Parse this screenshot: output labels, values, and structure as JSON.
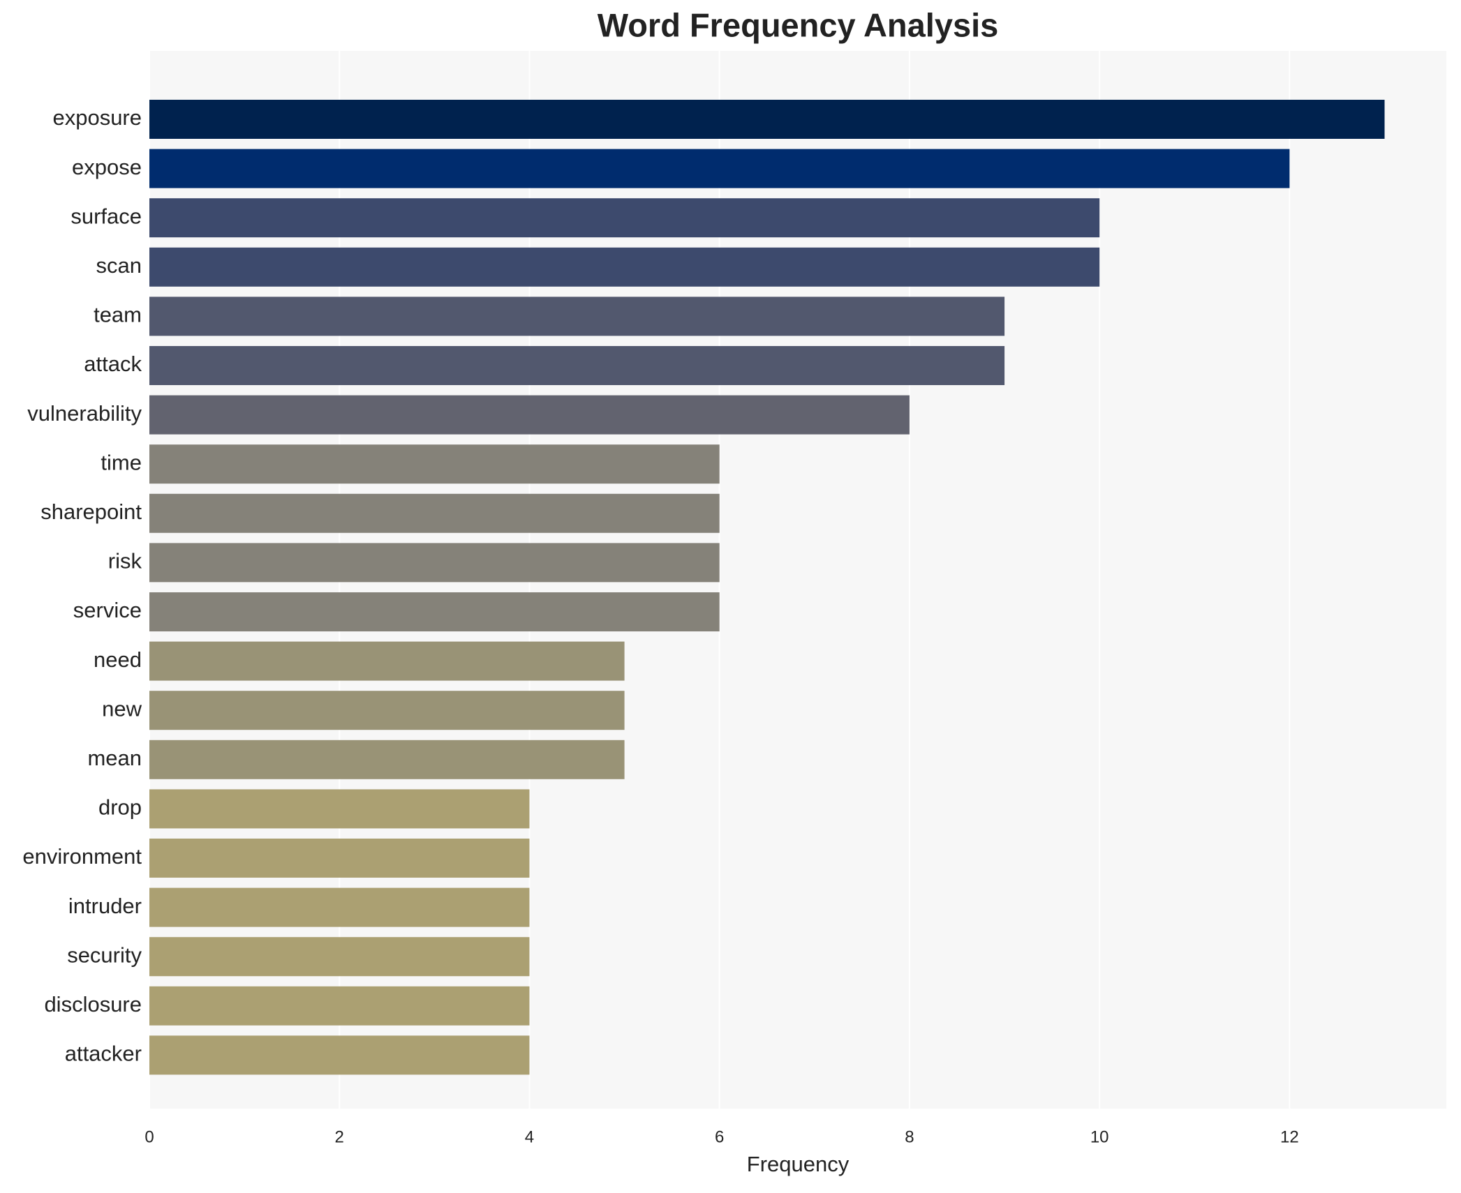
{
  "chart_data": {
    "type": "bar",
    "orientation": "horizontal",
    "title": "Word Frequency Analysis",
    "x_label": "Frequency",
    "categories": [
      "exposure",
      "expose",
      "surface",
      "scan",
      "team",
      "attack",
      "vulnerability",
      "time",
      "sharepoint",
      "risk",
      "service",
      "need",
      "new",
      "mean",
      "drop",
      "environment",
      "intruder",
      "security",
      "disclosure",
      "attacker"
    ],
    "values": [
      13,
      12,
      10,
      10,
      9,
      9,
      8,
      6,
      6,
      6,
      6,
      5,
      5,
      5,
      4,
      4,
      4,
      4,
      4,
      4
    ],
    "colors": [
      "#00224e",
      "#002c6e",
      "#3d4a6d",
      "#3d4a6d",
      "#52586e",
      "#52586e",
      "#62636f",
      "#858279",
      "#858279",
      "#858279",
      "#858279",
      "#999376",
      "#999376",
      "#999376",
      "#aba072",
      "#aba072",
      "#aba072",
      "#aba072",
      "#aba072",
      "#aba072"
    ],
    "xlim": [
      0,
      13.65
    ],
    "xticks": [
      0,
      2,
      4,
      6,
      8,
      10,
      12
    ],
    "grid": true
  }
}
